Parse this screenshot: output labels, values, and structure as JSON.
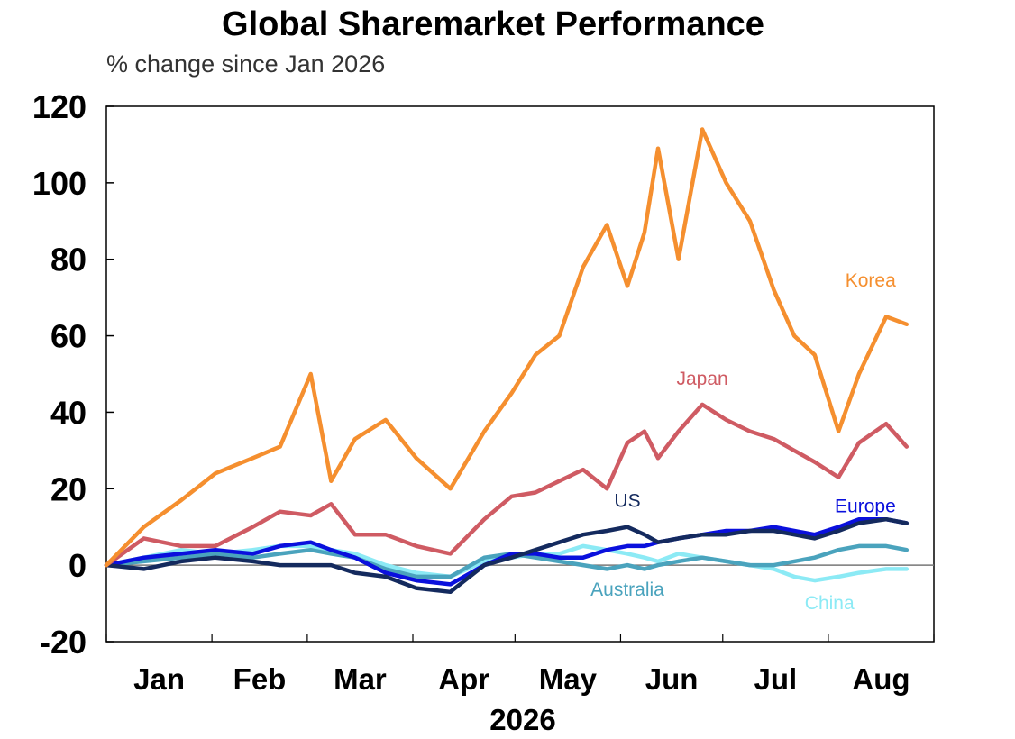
{
  "chart_data": {
    "type": "line",
    "title": "Global Sharemarket Performance",
    "subtitle": "% change since Jan 2026",
    "xlabel": "2026",
    "ylabel": "",
    "ylim": [
      -20,
      120
    ],
    "yticks": [
      -20,
      0,
      20,
      40,
      60,
      80,
      100,
      120
    ],
    "months": [
      "Jan",
      "Feb",
      "Mar",
      "Apr",
      "May",
      "Jun",
      "Jul",
      "Aug"
    ],
    "x": [
      "2026-01-01",
      "2026-01-12",
      "2026-01-23",
      "2026-02-02",
      "2026-02-13",
      "2026-02-21",
      "2026-03-02",
      "2026-03-08",
      "2026-03-15",
      "2026-03-24",
      "2026-04-02",
      "2026-04-12",
      "2026-04-22",
      "2026-04-30",
      "2026-05-07",
      "2026-05-14",
      "2026-05-21",
      "2026-05-28",
      "2026-06-03",
      "2026-06-08",
      "2026-06-12",
      "2026-06-18",
      "2026-06-25",
      "2026-07-02",
      "2026-07-09",
      "2026-07-16",
      "2026-07-22",
      "2026-07-28",
      "2026-08-04",
      "2026-08-10",
      "2026-08-18",
      "2026-08-24"
    ],
    "series": [
      {
        "name": "Korea",
        "color": "#f58f2f",
        "values": [
          0,
          10,
          17,
          24,
          28,
          31,
          50,
          22,
          33,
          38,
          28,
          20,
          35,
          45,
          55,
          60,
          78,
          89,
          73,
          87,
          109,
          80,
          114,
          100,
          90,
          72,
          60,
          55,
          35,
          50,
          65,
          63
        ]
      },
      {
        "name": "Japan",
        "color": "#cf5b63",
        "values": [
          0,
          7,
          5,
          5,
          10,
          14,
          13,
          16,
          8,
          8,
          5,
          3,
          12,
          18,
          19,
          22,
          25,
          20,
          32,
          35,
          28,
          35,
          42,
          38,
          35,
          33,
          30,
          27,
          23,
          32,
          37,
          31
        ]
      },
      {
        "name": "US",
        "color": "#142a5e",
        "values": [
          0,
          -1,
          1,
          2,
          1,
          0,
          0,
          0,
          -2,
          -3,
          -6,
          -7,
          0,
          2,
          4,
          6,
          8,
          9,
          10,
          8,
          6,
          7,
          8,
          8,
          9,
          9,
          8,
          7,
          9,
          11,
          12,
          11
        ]
      },
      {
        "name": "Europe",
        "color": "#0a10dd",
        "values": [
          0,
          2,
          3,
          4,
          3,
          5,
          6,
          4,
          2,
          -2,
          -4,
          -5,
          0,
          3,
          3,
          2,
          2,
          4,
          5,
          5,
          6,
          7,
          8,
          9,
          9,
          10,
          9,
          8,
          10,
          12,
          12,
          11
        ]
      },
      {
        "name": "Australia",
        "color": "#4aa3bd",
        "values": [
          0,
          1,
          2,
          3,
          2,
          3,
          4,
          3,
          2,
          -1,
          -3,
          -3,
          2,
          3,
          2,
          1,
          0,
          -1,
          0,
          -1,
          0,
          1,
          2,
          1,
          0,
          0,
          1,
          2,
          4,
          5,
          5,
          4
        ]
      },
      {
        "name": "China",
        "color": "#8ceaf5",
        "values": [
          0,
          2,
          4,
          3,
          4,
          5,
          5,
          4,
          3,
          0,
          -2,
          -3,
          1,
          2,
          3,
          3,
          5,
          4,
          3,
          2,
          1,
          3,
          2,
          1,
          0,
          -1,
          -3,
          -4,
          -3,
          -2,
          -1,
          -1
        ]
      }
    ],
    "label_positions": {
      "Korea": "upper-right",
      "Japan": "above-line",
      "US": "above-line",
      "Europe": "upper-right",
      "Australia": "below-line",
      "China": "below-line-right"
    },
    "grid": false,
    "legend": "none"
  }
}
